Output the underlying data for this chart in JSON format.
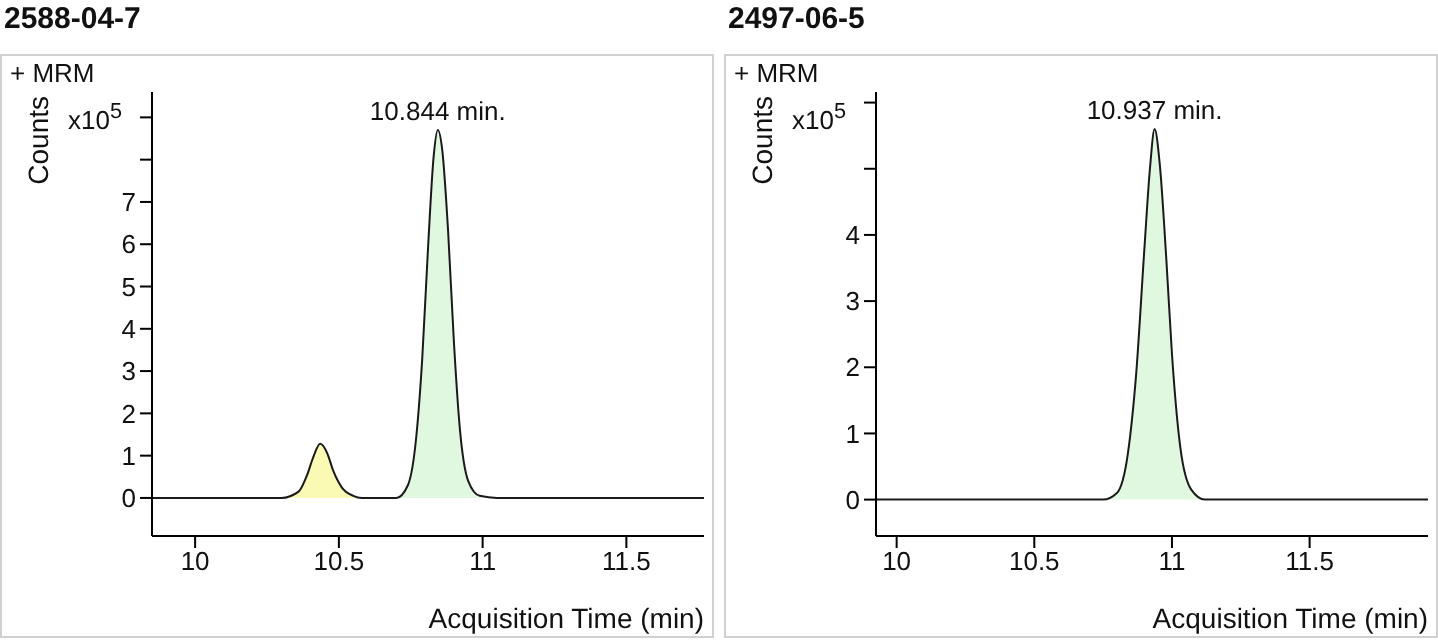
{
  "chart_data": [
    {
      "type": "line",
      "title": "2588-04-7",
      "xlabel": "Acquisition Time (min)",
      "ylabel": "Counts",
      "annotations": [
        "+ MRM",
        "x10$^{5}$",
        {
          "text": "10.844 min.",
          "x": 10.844,
          "y": 8.7
        }
      ],
      "xlim": [
        9.85,
        11.77
      ],
      "xticks": [
        10,
        10.5,
        11,
        11.5
      ],
      "ylim": [
        -0.9,
        9.6
      ],
      "yticks": [
        0,
        1,
        2,
        3,
        4,
        5,
        6,
        7,
        {
          "value": 8,
          "label": null
        },
        {
          "value": 9,
          "label": null
        }
      ],
      "series": [
        {
          "type": "area",
          "color": "#fafab4",
          "x": [
            10.3,
            10.36,
            10.39,
            10.41,
            10.435,
            10.46,
            10.48,
            10.51,
            10.55,
            10.58
          ],
          "values": [
            0,
            0.15,
            0.55,
            0.95,
            1.28,
            1.05,
            0.65,
            0.25,
            0.05,
            0
          ]
        },
        {
          "type": "area",
          "color": "#e0f8e0",
          "x": [
            10.7,
            10.74,
            10.77,
            10.79,
            10.81,
            10.83,
            10.844,
            10.86,
            10.88,
            10.9,
            10.92,
            10.95,
            10.99,
            11.05
          ],
          "values": [
            0,
            0.3,
            1.5,
            3.3,
            5.9,
            8.1,
            8.7,
            8.2,
            6.3,
            3.7,
            1.7,
            0.4,
            0.05,
            0
          ]
        },
        {
          "color": "#1a1a1a",
          "x": [
            9.85,
            10.3,
            10.36,
            10.39,
            10.41,
            10.435,
            10.46,
            10.48,
            10.51,
            10.55,
            10.58,
            10.7,
            10.74,
            10.77,
            10.79,
            10.81,
            10.83,
            10.844,
            10.86,
            10.88,
            10.9,
            10.92,
            10.95,
            10.99,
            11.05,
            11.77
          ],
          "values": [
            0,
            0,
            0.15,
            0.55,
            0.95,
            1.28,
            1.05,
            0.65,
            0.25,
            0.05,
            0,
            0,
            0.3,
            1.5,
            3.3,
            5.9,
            8.1,
            8.7,
            8.2,
            6.3,
            3.7,
            1.7,
            0.4,
            0.05,
            0,
            0
          ]
        }
      ]
    },
    {
      "type": "line",
      "title": "2497-06-5",
      "xlabel": "Acquisition Time (min)",
      "ylabel": "Counts",
      "annotations": [
        "+ MRM",
        "x10$^{5}$",
        {
          "text": "10.937 min.",
          "x": 10.937,
          "y": 5.6
        }
      ],
      "xlim": [
        9.925,
        11.93
      ],
      "xticks": [
        10,
        10.5,
        11,
        11.5
      ],
      "ylim": [
        -0.55,
        6.16
      ],
      "yticks": [
        0,
        1,
        2,
        3,
        4,
        {
          "value": 5,
          "label": null
        },
        {
          "value": 6,
          "label": null
        }
      ],
      "series": [
        {
          "type": "area",
          "color": "#e0f8e0",
          "x": [
            10.75,
            10.8,
            10.84,
            10.87,
            10.9,
            10.92,
            10.937,
            10.955,
            10.98,
            11.0,
            11.03,
            11.07,
            11.12
          ],
          "values": [
            0,
            0.1,
            0.7,
            1.9,
            3.8,
            5.0,
            5.6,
            5.1,
            3.6,
            2.2,
            0.8,
            0.15,
            0
          ]
        },
        {
          "color": "#1a1a1a",
          "x": [
            9.925,
            10.75,
            10.8,
            10.84,
            10.87,
            10.9,
            10.92,
            10.937,
            10.955,
            10.98,
            11.0,
            11.03,
            11.07,
            11.12,
            11.93
          ],
          "values": [
            0,
            0,
            0.1,
            0.7,
            1.9,
            3.8,
            5.0,
            5.6,
            5.1,
            3.6,
            2.2,
            0.8,
            0.15,
            0,
            0
          ]
        }
      ]
    }
  ]
}
